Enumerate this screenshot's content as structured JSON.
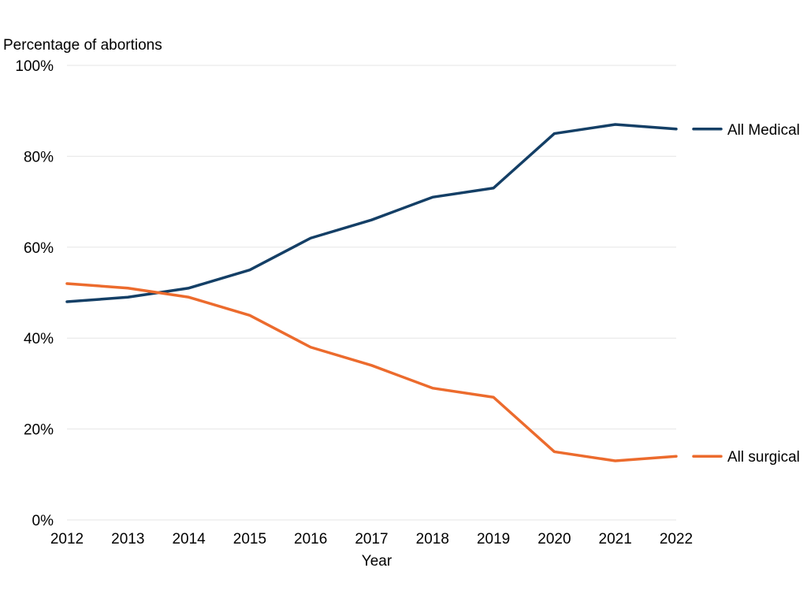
{
  "chart_data": {
    "type": "line",
    "title": "",
    "ylabel": "Percentage of abortions",
    "xlabel": "Year",
    "x": [
      "2012",
      "2013",
      "2014",
      "2015",
      "2016",
      "2017",
      "2018",
      "2019",
      "2020",
      "2021",
      "2022"
    ],
    "ylim": [
      0,
      100
    ],
    "yticks": [
      0,
      20,
      40,
      60,
      80,
      100
    ],
    "ytick_labels": [
      "0%",
      "20%",
      "40%",
      "60%",
      "80%",
      "100%"
    ],
    "grid": true,
    "legend": "right",
    "series": [
      {
        "name": "All Medical",
        "color": "#143f66",
        "values": [
          48,
          49,
          51,
          55,
          62,
          66,
          71,
          73,
          85,
          87,
          86
        ]
      },
      {
        "name": "All surgical",
        "color": "#ec6b2d",
        "values": [
          52,
          51,
          49,
          45,
          38,
          34,
          29,
          27,
          15,
          13,
          14
        ]
      }
    ]
  }
}
